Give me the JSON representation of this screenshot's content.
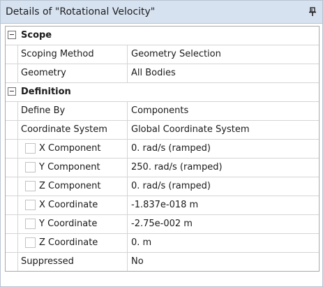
{
  "panel": {
    "title": "Details of \"Rotational Velocity\"",
    "pin_icon": "pin-icon"
  },
  "groups": {
    "scope": {
      "label": "Scope",
      "rows": [
        {
          "name": "Scoping Method",
          "value": "Geometry Selection"
        },
        {
          "name": "Geometry",
          "value": "All Bodies"
        }
      ]
    },
    "definition": {
      "label": "Definition",
      "rows": [
        {
          "name": "Define By",
          "value": "Components"
        },
        {
          "name": "Coordinate System",
          "value": "Global Coordinate System"
        },
        {
          "name": "X Component",
          "value": "0. rad/s  (ramped)",
          "checkbox": false
        },
        {
          "name": "Y Component",
          "value": "250. rad/s  (ramped)",
          "checkbox": false
        },
        {
          "name": "Z Component",
          "value": "0. rad/s  (ramped)",
          "checkbox": false
        },
        {
          "name": "X Coordinate",
          "value": "-1.837e-018 m",
          "checkbox": false
        },
        {
          "name": "Y Coordinate",
          "value": "-2.75e-002 m",
          "checkbox": false
        },
        {
          "name": "Z Coordinate",
          "value": "0. m",
          "checkbox": false
        },
        {
          "name": "Suppressed",
          "value": "No"
        }
      ]
    }
  }
}
